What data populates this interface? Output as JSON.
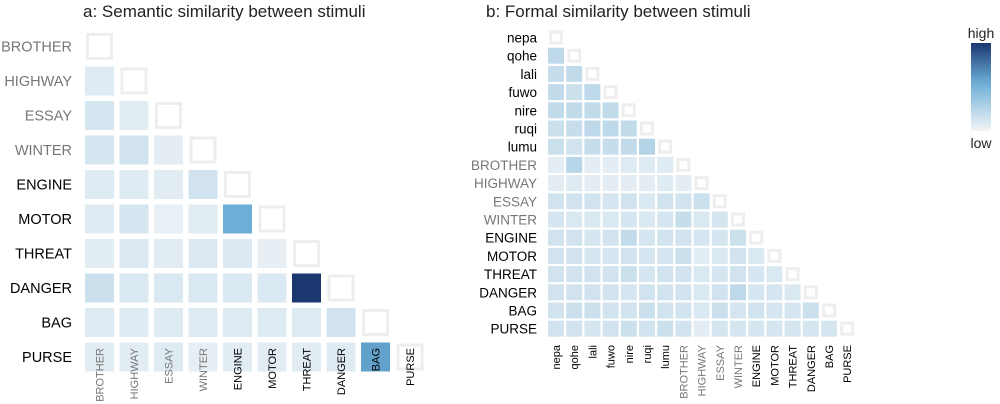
{
  "colors": {
    "low": "#f3f5f7",
    "high": "#1b3770",
    "diag_stroke": "#eeeeee",
    "word_label": "#000000",
    "filler_label": "#777777",
    "pseudo_label": "#000000"
  },
  "chart_data": [
    {
      "type": "heatmap",
      "title": "a: Semantic similarity between stimuli",
      "labels": [
        "BROTHER",
        "HIGHWAY",
        "ESSAY",
        "WINTER",
        "ENGINE",
        "MOTOR",
        "THREAT",
        "DANGER",
        "BAG",
        "PURSE"
      ],
      "label_groups": [
        "filler",
        "filler",
        "filler",
        "filler",
        "word",
        "word",
        "word",
        "word",
        "word",
        "word"
      ],
      "lower_triangle": true,
      "diagonal": "empty",
      "values": [
        [],
        [
          0.08
        ],
        [
          0.12,
          0.07
        ],
        [
          0.12,
          0.14,
          0.06
        ],
        [
          0.08,
          0.08,
          0.07,
          0.14
        ],
        [
          0.08,
          0.12,
          0.04,
          0.07,
          0.55
        ],
        [
          0.07,
          0.09,
          0.07,
          0.09,
          0.09,
          0.05
        ],
        [
          0.16,
          0.1,
          0.1,
          0.1,
          0.1,
          0.1,
          1.0
        ],
        [
          0.08,
          0.08,
          0.08,
          0.08,
          0.08,
          0.08,
          0.08,
          0.14
        ],
        [
          0.07,
          0.07,
          0.08,
          0.05,
          0.07,
          0.07,
          0.07,
          0.08,
          0.6
        ]
      ]
    },
    {
      "type": "heatmap",
      "title": "b: Formal similarity between stimuli",
      "labels": [
        "nepa",
        "qohe",
        "lali",
        "fuwo",
        "nire",
        "ruqi",
        "lumu",
        "BROTHER",
        "HIGHWAY",
        "ESSAY",
        "WINTER",
        "ENGINE",
        "MOTOR",
        "THREAT",
        "DANGER",
        "BAG",
        "PURSE"
      ],
      "label_groups": [
        "pseudo",
        "pseudo",
        "pseudo",
        "pseudo",
        "pseudo",
        "pseudo",
        "pseudo",
        "filler",
        "filler",
        "filler",
        "filler",
        "word",
        "word",
        "word",
        "word",
        "word",
        "word"
      ],
      "lower_triangle": true,
      "diagonal": "empty",
      "legend": {
        "high": "high",
        "low": "low"
      },
      "values": [
        [],
        [
          0.22
        ],
        [
          0.18,
          0.2
        ],
        [
          0.2,
          0.16,
          0.22
        ],
        [
          0.2,
          0.2,
          0.2,
          0.2
        ],
        [
          0.16,
          0.18,
          0.22,
          0.22,
          0.2
        ],
        [
          0.16,
          0.14,
          0.18,
          0.18,
          0.2,
          0.26
        ],
        [
          0.06,
          0.24,
          0.06,
          0.06,
          0.08,
          0.08,
          0.08
        ],
        [
          0.06,
          0.08,
          0.06,
          0.06,
          0.06,
          0.06,
          0.08,
          0.06
        ],
        [
          0.14,
          0.14,
          0.14,
          0.12,
          0.14,
          0.1,
          0.14,
          0.14,
          0.16
        ],
        [
          0.12,
          0.1,
          0.1,
          0.1,
          0.12,
          0.1,
          0.12,
          0.18,
          0.1,
          0.12
        ],
        [
          0.14,
          0.14,
          0.12,
          0.14,
          0.2,
          0.12,
          0.14,
          0.14,
          0.12,
          0.12,
          0.16
        ],
        [
          0.14,
          0.14,
          0.12,
          0.12,
          0.14,
          0.12,
          0.12,
          0.16,
          0.07,
          0.1,
          0.14,
          0.1
        ],
        [
          0.14,
          0.14,
          0.14,
          0.14,
          0.16,
          0.12,
          0.14,
          0.14,
          0.1,
          0.12,
          0.14,
          0.12,
          0.1
        ],
        [
          0.14,
          0.14,
          0.14,
          0.14,
          0.12,
          0.14,
          0.14,
          0.14,
          0.1,
          0.14,
          0.22,
          0.12,
          0.12,
          0.1
        ],
        [
          0.14,
          0.16,
          0.16,
          0.14,
          0.14,
          0.16,
          0.14,
          0.14,
          0.1,
          0.16,
          0.12,
          0.14,
          0.12,
          0.12,
          0.16
        ],
        [
          0.14,
          0.14,
          0.12,
          0.14,
          0.16,
          0.14,
          0.16,
          0.14,
          0.06,
          0.12,
          0.12,
          0.12,
          0.12,
          0.12,
          0.12,
          0.12
        ]
      ]
    }
  ]
}
